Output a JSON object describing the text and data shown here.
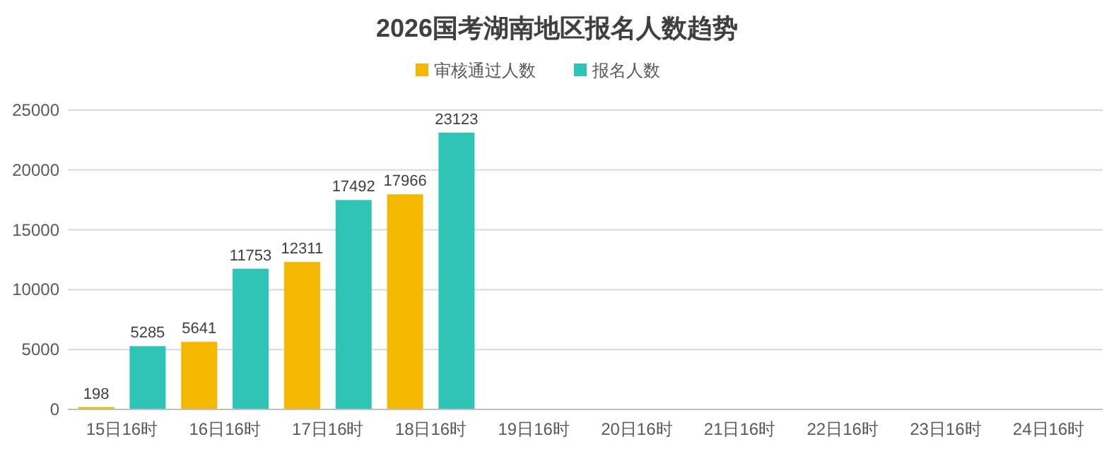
{
  "chart_data": {
    "type": "bar",
    "title": "2026国考湖南地区报名人数趋势",
    "categories": [
      "15日16时",
      "16日16时",
      "17日16时",
      "18日16时",
      "19日16时",
      "20日16时",
      "21日16时",
      "22日16时",
      "23日16时",
      "24日16时"
    ],
    "series": [
      {
        "name": "审核通过人数",
        "color": "#f5b800",
        "values": [
          198,
          5641,
          12311,
          17966,
          null,
          null,
          null,
          null,
          null,
          null
        ]
      },
      {
        "name": "报名人数",
        "color": "#2ec4b6",
        "values": [
          5285,
          11753,
          17492,
          23123,
          null,
          null,
          null,
          null,
          null,
          null
        ]
      }
    ],
    "ylim": [
      0,
      25000
    ],
    "yticks": [
      0,
      5000,
      10000,
      15000,
      20000,
      25000
    ],
    "grid": "y",
    "legend": "top",
    "data_labels": true
  }
}
